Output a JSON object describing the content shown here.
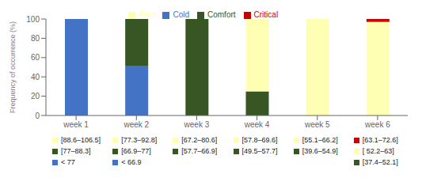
{
  "chart_data": {
    "type": "bar",
    "stacked": true,
    "grid": false,
    "legend": "top",
    "ylabel": "Frequency of occurrence (%)",
    "categories": [
      "week 1",
      "week 2",
      "week 3",
      "week 4",
      "week 5",
      "week 6"
    ],
    "series": [
      {
        "name": "Cold",
        "color": "#4472C4",
        "values": [
          100,
          51,
          0,
          0,
          0,
          0
        ]
      },
      {
        "name": "Comfort",
        "color": "#375623",
        "values": [
          0,
          49,
          100,
          25,
          0,
          0
        ]
      },
      {
        "name": "Alert",
        "color": "#FFFFB3",
        "values": [
          0,
          0,
          0,
          75,
          100,
          97
        ]
      },
      {
        "name": "Critical",
        "color": "#CC0000",
        "values": [
          0,
          0,
          0,
          0,
          0,
          3
        ]
      }
    ],
    "ylim": [
      0,
      100
    ],
    "yticks": [
      0,
      20,
      40,
      60,
      80,
      100
    ],
    "annotations": [
      {
        "category": "week 1",
        "text": "[88.6–106.5]",
        "color": "#FFFFB3"
      },
      {
        "category": "week 2",
        "text": "[77.3–92.8]",
        "color": "#FFFFB3"
      },
      {
        "category": "week 3",
        "text": "[67.2–80.6]",
        "color": "#FFFFB3"
      },
      {
        "category": "week 4",
        "text": "[57.8–69.6]",
        "color": "#FFFFB3"
      },
      {
        "category": "week 5",
        "text": "[55.1–66.2]",
        "color": "#FFFFB3"
      },
      {
        "category": "week 6",
        "text": "[63.1–72.6]",
        "color": "#CC0000"
      },
      {
        "category": "week 1",
        "text": "[77–88.3]",
        "color": "#375623"
      },
      {
        "category": "week 2",
        "text": "[66.9–77]",
        "color": "#375623"
      },
      {
        "category": "week 3",
        "text": "[57.7–66.9]",
        "color": "#375623"
      },
      {
        "category": "week 4",
        "text": "[49.5–57.7]",
        "color": "#375623"
      },
      {
        "category": "week 5",
        "text": "[39.6–54.9]",
        "color": "#375623"
      },
      {
        "category": "week 6",
        "text": "[ 52.2–63]",
        "color": "#FFFFB3"
      },
      {
        "category": "week 1",
        "text": "< 77",
        "color": "#4472C4"
      },
      {
        "category": "week 2",
        "text": "< 66.9",
        "color": "#4472C4"
      },
      {
        "category": "week 6",
        "text": "[37.4–52.1]",
        "color": "#375623"
      }
    ]
  }
}
